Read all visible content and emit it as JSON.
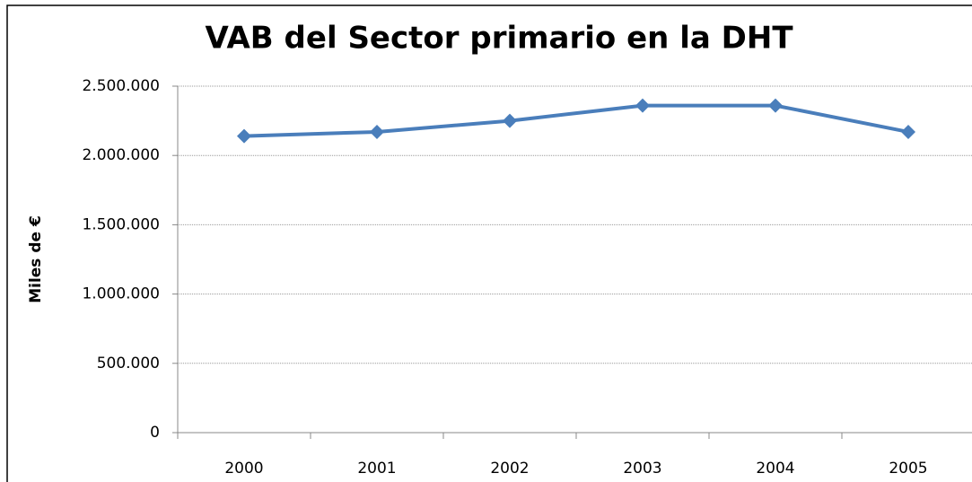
{
  "chart_data": {
    "type": "line",
    "title": "VAB del Sector primario en la DHT",
    "y_label": "Miles de €",
    "categories": [
      "2000",
      "2001",
      "2002",
      "2003",
      "2004",
      "2005"
    ],
    "series": [
      {
        "name": "VAB",
        "color": "#4a7ebb",
        "values": [
          2140000,
          2170000,
          2250000,
          2360000,
          2360000,
          2170000
        ]
      }
    ],
    "ylim": [
      0,
      2500000
    ],
    "yticks": [
      0,
      {
        "value": 500000,
        "label": "500.000"
      },
      {
        "value": 1000000,
        "label": "1.000.000"
      },
      {
        "value": 1500000,
        "label": "1.500.000"
      },
      {
        "value": 2000000,
        "label": "2.000.000"
      },
      {
        "value": 2500000,
        "label": "2.500.000"
      }
    ],
    "grid": true
  }
}
